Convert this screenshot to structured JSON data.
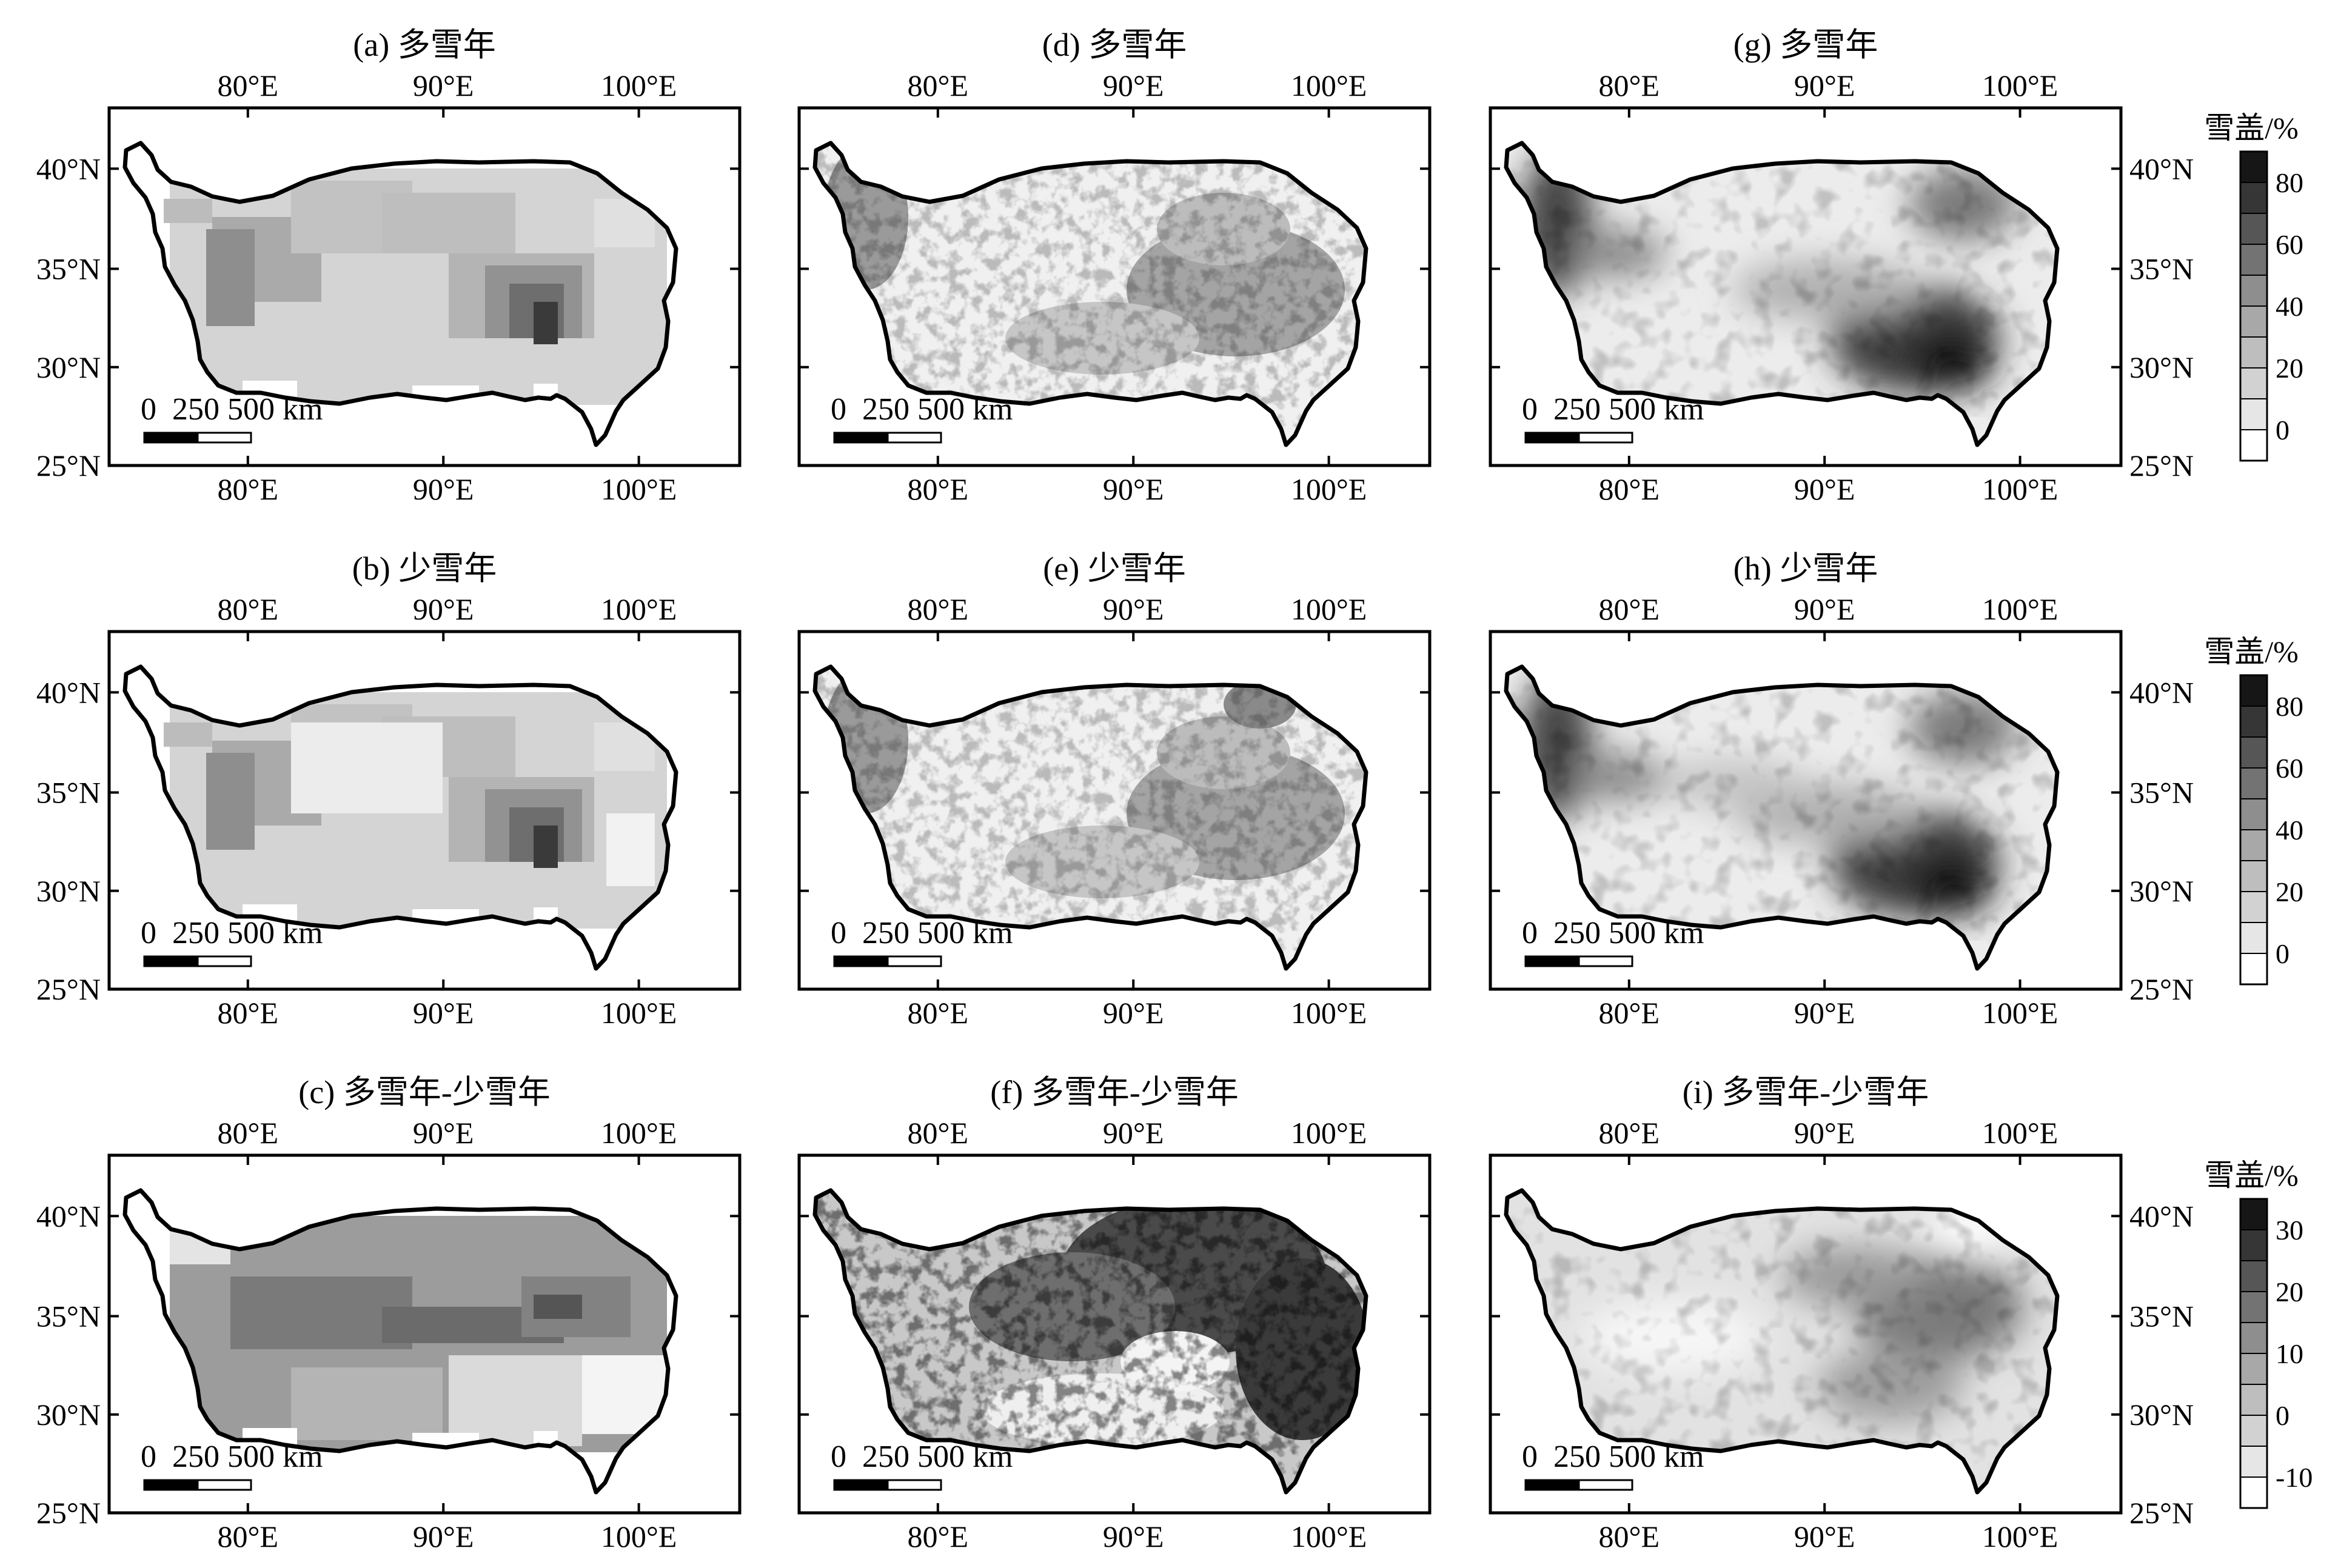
{
  "figure": {
    "panels": [
      {
        "id": "a",
        "title": "(a) 多雪年",
        "row": 0,
        "col": 0,
        "style": "interp"
      },
      {
        "id": "d",
        "title": "(d) 多雪年",
        "row": 0,
        "col": 1,
        "style": "modis"
      },
      {
        "id": "g",
        "title": "(g) 多雪年",
        "row": 0,
        "col": 2,
        "style": "model"
      },
      {
        "id": "b",
        "title": "(b) 少雪年",
        "row": 1,
        "col": 0,
        "style": "interp"
      },
      {
        "id": "e",
        "title": "(e) 少雪年",
        "row": 1,
        "col": 1,
        "style": "modis"
      },
      {
        "id": "h",
        "title": "(h) 少雪年",
        "row": 1,
        "col": 2,
        "style": "model"
      },
      {
        "id": "c",
        "title": "(c) 多雪年-少雪年",
        "row": 2,
        "col": 0,
        "style": "interp_diff"
      },
      {
        "id": "f",
        "title": "(f) 多雪年-少雪年",
        "row": 2,
        "col": 1,
        "style": "modis_diff"
      },
      {
        "id": "i",
        "title": "(i) 多雪年-少雪年",
        "row": 2,
        "col": 2,
        "style": "model_diff"
      }
    ],
    "lon_ticks": [
      "80°E",
      "90°E",
      "100°E"
    ],
    "lat_ticks": [
      "25°N",
      "30°N",
      "35°N",
      "40°N"
    ],
    "scale_bar": {
      "label": "0  250 500 km"
    },
    "colorbars": [
      {
        "title": "雪盖/%",
        "labels": [
          "0",
          "20",
          "40",
          "60",
          "80"
        ],
        "colors": [
          "#ffffff",
          "#e6e6e6",
          "#d2d2d2",
          "#bebebe",
          "#a8a8a8",
          "#8e8e8e",
          "#737373",
          "#565656",
          "#363636",
          "#161616"
        ]
      },
      {
        "title": "雪盖/%",
        "labels": [
          "0",
          "20",
          "40",
          "60",
          "80"
        ],
        "colors": [
          "#ffffff",
          "#e6e6e6",
          "#d2d2d2",
          "#bebebe",
          "#a8a8a8",
          "#8e8e8e",
          "#737373",
          "#565656",
          "#363636",
          "#161616"
        ]
      },
      {
        "title": "雪盖/%",
        "labels": [
          "-10",
          "0",
          "10",
          "20",
          "30"
        ],
        "colors": [
          "#ffffff",
          "#e6e6e6",
          "#d2d2d2",
          "#bebebe",
          "#a8a8a8",
          "#8e8e8e",
          "#737373",
          "#565656",
          "#363636",
          "#161616"
        ]
      }
    ]
  }
}
